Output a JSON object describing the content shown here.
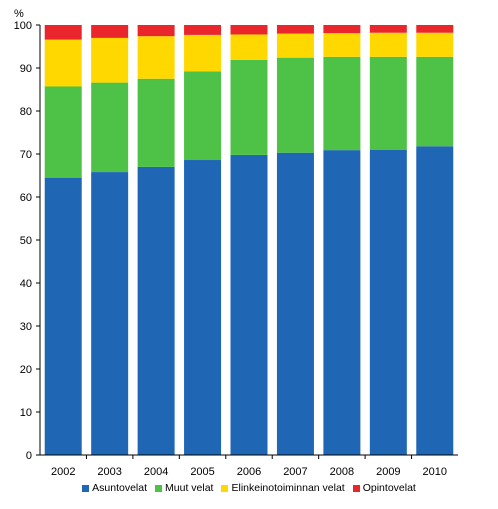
{
  "chart_data": {
    "type": "bar",
    "stacked": true,
    "categories": [
      "2002",
      "2003",
      "2004",
      "2005",
      "2006",
      "2007",
      "2008",
      "2009",
      "2010"
    ],
    "series": [
      {
        "name": "Asuntovelat",
        "color": "#1F66B5",
        "values": [
          64.5,
          65.8,
          67.0,
          68.6,
          69.8,
          70.3,
          70.9,
          71.0,
          71.8
        ]
      },
      {
        "name": "Muut velat",
        "color": "#4DC246",
        "values": [
          21.2,
          20.8,
          20.5,
          20.6,
          22.1,
          22.1,
          21.7,
          21.6,
          20.8
        ]
      },
      {
        "name": "Elinkeinotoiminnan velat",
        "color": "#FFD800",
        "values": [
          10.9,
          10.4,
          9.9,
          8.5,
          5.9,
          5.6,
          5.5,
          5.6,
          5.6
        ]
      },
      {
        "name": "Opintovelat",
        "color": "#E8262B",
        "values": [
          3.4,
          3.0,
          2.6,
          2.3,
          2.2,
          2.0,
          1.9,
          1.8,
          1.8
        ]
      }
    ],
    "ylabel": "%",
    "ylim": [
      0,
      100
    ],
    "yticks": [
      "0",
      "10",
      "20",
      "30",
      "40",
      "50",
      "60",
      "70",
      "80",
      "90",
      "100"
    ],
    "grid": false,
    "legend": "bottom"
  }
}
